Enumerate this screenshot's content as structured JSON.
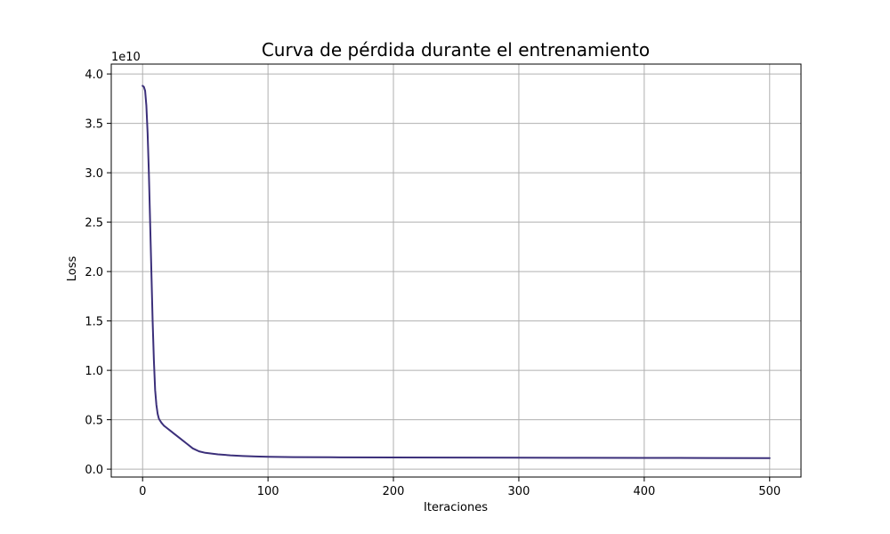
{
  "chart_data": {
    "type": "line",
    "title": "Curva de pérdida durante el entrenamiento",
    "xlabel": "Iteraciones",
    "ylabel": "Loss",
    "y_offset_label": "1e10",
    "xlim": [
      -25,
      525
    ],
    "ylim": [
      -800000000.0,
      41000000000.0
    ],
    "x_ticks": [
      0,
      100,
      200,
      300,
      400,
      500
    ],
    "x_tick_labels": [
      "0",
      "100",
      "200",
      "300",
      "400",
      "500"
    ],
    "y_ticks": [
      0,
      5000000000.0,
      10000000000.0,
      15000000000.0,
      20000000000.0,
      25000000000.0,
      30000000000.0,
      35000000000.0,
      40000000000.0
    ],
    "y_tick_labels": [
      "0.0",
      "0.5",
      "1.0",
      "1.5",
      "2.0",
      "2.5",
      "3.0",
      "3.5",
      "4.0"
    ],
    "grid": true,
    "series": [
      {
        "color": "#3b2f7a",
        "x": [
          0,
          1,
          2,
          3,
          4,
          5,
          6,
          7,
          8,
          9,
          10,
          11,
          12,
          13,
          14,
          15,
          16,
          17,
          18,
          20,
          22,
          25,
          30,
          35,
          40,
          45,
          50,
          60,
          70,
          80,
          90,
          100,
          120,
          150,
          200,
          250,
          300,
          350,
          400,
          450,
          500
        ],
        "y": [
          38800000000.0,
          38700000000.0,
          38300000000.0,
          36800000000.0,
          34000000000.0,
          30000000000.0,
          25000000000.0,
          20000000000.0,
          15000000000.0,
          11000000000.0,
          8000000000.0,
          6500000000.0,
          5600000000.0,
          5100000000.0,
          4900000000.0,
          4700000000.0,
          4550000000.0,
          4400000000.0,
          4300000000.0,
          4100000000.0,
          3900000000.0,
          3600000000.0,
          3100000000.0,
          2600000000.0,
          2100000000.0,
          1800000000.0,
          1650000000.0,
          1500000000.0,
          1400000000.0,
          1330000000.0,
          1280000000.0,
          1250000000.0,
          1220000000.0,
          1200000000.0,
          1180000000.0,
          1170000000.0,
          1160000000.0,
          1150000000.0,
          1140000000.0,
          1130000000.0,
          1120000000.0
        ]
      }
    ]
  }
}
